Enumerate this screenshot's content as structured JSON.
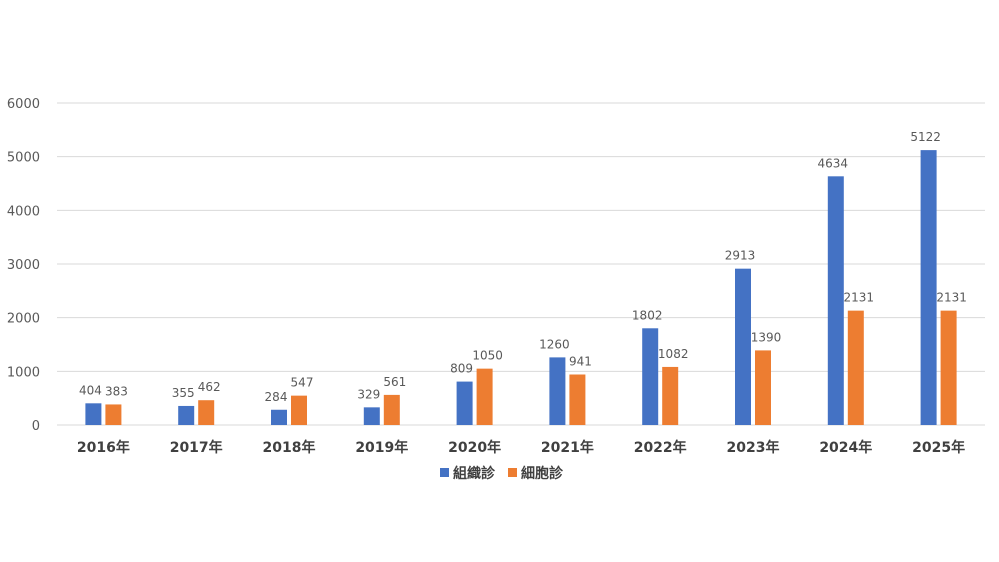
{
  "chart_data": {
    "type": "bar",
    "title": "",
    "xlabel": "",
    "ylabel": "",
    "ylim": [
      0,
      6000
    ],
    "yticks": [
      "0",
      "1000",
      "2000",
      "3000",
      "4000",
      "5000",
      "6000"
    ],
    "categories": [
      "2016年",
      "2017年",
      "2018年",
      "2019年",
      "2020年",
      "2021年",
      "2022年",
      "2023年",
      "2024年",
      "2025年"
    ],
    "series": [
      {
        "name": "組織診",
        "color": "#4472C4",
        "values": [
          404,
          355,
          284,
          329,
          809,
          1260,
          1802,
          2913,
          4634,
          5122
        ]
      },
      {
        "name": "細胞診",
        "color": "#ED7D31",
        "values": [
          383,
          462,
          547,
          561,
          1050,
          941,
          1082,
          1390,
          2131,
          2131
        ]
      }
    ],
    "grid": true,
    "legend": "bottom-center"
  }
}
